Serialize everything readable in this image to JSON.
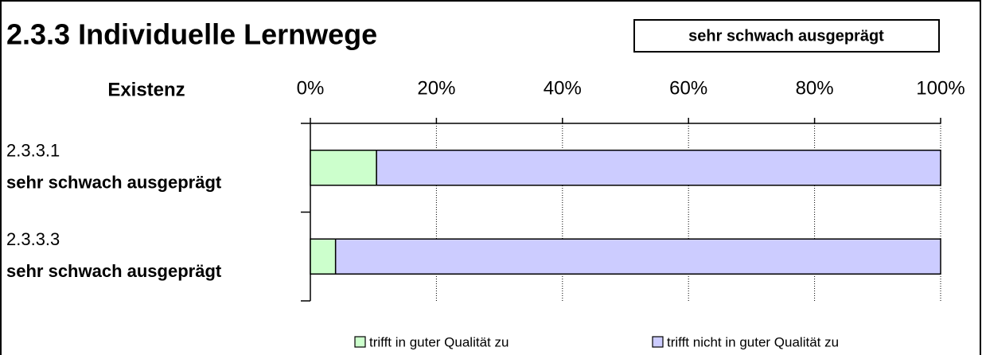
{
  "chart_data": {
    "type": "stacked-bar-horizontal",
    "title": "2.3.3 Individuelle Lernwege",
    "badge": "sehr schwach ausgeprägt",
    "axis_label": "Existenz",
    "categories": [
      "2.3.3.1",
      "2.3.3.3"
    ],
    "category_ratings": [
      "sehr schwach ausgeprägt",
      "sehr schwach ausgeprägt"
    ],
    "series": [
      {
        "name": "trifft in guter Qualität zu",
        "color": "#ccffcc",
        "values": [
          10.5,
          4
        ]
      },
      {
        "name": "trifft nicht in guter Qualität zu",
        "color": "#ccccff",
        "values": [
          89.5,
          96
        ]
      }
    ],
    "xlim": [
      0,
      100
    ],
    "xticks": [
      {
        "value": 0,
        "label": "0%"
      },
      {
        "value": 20,
        "label": "20%"
      },
      {
        "value": 40,
        "label": "40%"
      },
      {
        "value": 60,
        "label": "60%"
      },
      {
        "value": 80,
        "label": "80%"
      },
      {
        "value": 100,
        "label": "100%"
      }
    ],
    "grid": true
  }
}
